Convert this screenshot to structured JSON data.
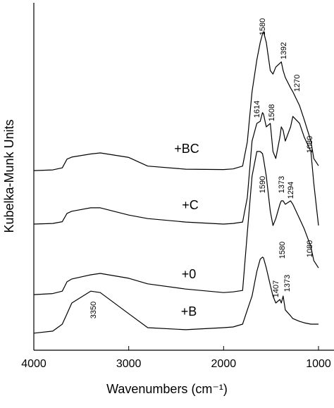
{
  "chart_data": {
    "type": "line",
    "x_label": "Wavenumbers (cm⁻¹)",
    "y_label": "Kubelka-Munk Units",
    "xlim": [
      4000,
      1000
    ],
    "xticks": [
      4000,
      3000,
      2000,
      1000
    ],
    "ylim": [
      0,
      100
    ],
    "x": [
      4000,
      3800,
      3700,
      3650,
      3600,
      3400,
      3300,
      3000,
      2800,
      2400,
      2000,
      1900,
      1800,
      1750,
      1700,
      1650,
      1614,
      1590,
      1580,
      1550,
      1508,
      1480,
      1450,
      1407,
      1392,
      1373,
      1350,
      1294,
      1270,
      1200,
      1150,
      1080,
      1050,
      1000
    ],
    "series": [
      {
        "name": "+BC",
        "color": "#000000",
        "values": [
          51.7,
          51.9,
          52.5,
          55,
          55.6,
          56.5,
          56.8,
          55.5,
          53,
          52.1,
          52,
          52.2,
          53,
          60,
          74.4,
          83.6,
          88.6,
          91,
          91.7,
          88.6,
          80.5,
          79.5,
          81.5,
          82.6,
          83,
          80.5,
          78.5,
          75.5,
          74.4,
          70.4,
          66.3,
          60.2,
          55.2,
          53.1
        ]
      },
      {
        "name": "+C",
        "color": "#000000",
        "values": [
          36.3,
          36.5,
          37,
          39.4,
          40,
          41,
          41,
          38.9,
          37.9,
          36.9,
          36.3,
          36.5,
          36.9,
          44,
          60.2,
          65.3,
          65.9,
          68.4,
          68,
          64.3,
          65.3,
          57.2,
          55.2,
          61.3,
          64.3,
          63.3,
          60.2,
          64.3,
          67.3,
          65.3,
          61.3,
          57.2,
          48.1,
          35.9
        ]
      },
      {
        "name": "+0",
        "color": "#000000",
        "values": [
          16,
          16.3,
          17,
          19.7,
          20.5,
          21.7,
          22.1,
          20.7,
          19.1,
          17.6,
          16.6,
          16.8,
          17.2,
          33.9,
          50.1,
          57.2,
          57.2,
          56.6,
          55.2,
          50.1,
          40,
          35.9,
          37.9,
          42,
          43,
          43,
          42,
          43,
          42,
          37.9,
          34.9,
          29.8,
          25.8,
          23.7
        ]
      },
      {
        "name": "+B",
        "color": "#000000",
        "values": [
          4.9,
          5.5,
          7.5,
          10.5,
          13.6,
          17,
          16.6,
          10.5,
          6.5,
          5.9,
          6.5,
          6.7,
          7.5,
          11.6,
          15.6,
          22.7,
          26.2,
          26.8,
          26.6,
          23.7,
          18.7,
          15.6,
          13.6,
          14.6,
          13.6,
          15.6,
          11.6,
          9.9,
          9.1,
          8.3,
          7.9,
          7.5,
          7.5,
          7.5
        ]
      }
    ],
    "annotations": [
      "1580",
      "1392",
      "1270",
      "1614",
      "1508",
      "1080",
      "1590",
      "1373",
      "1294",
      "1080",
      "1580",
      "1407",
      "1373",
      "3350"
    ]
  }
}
